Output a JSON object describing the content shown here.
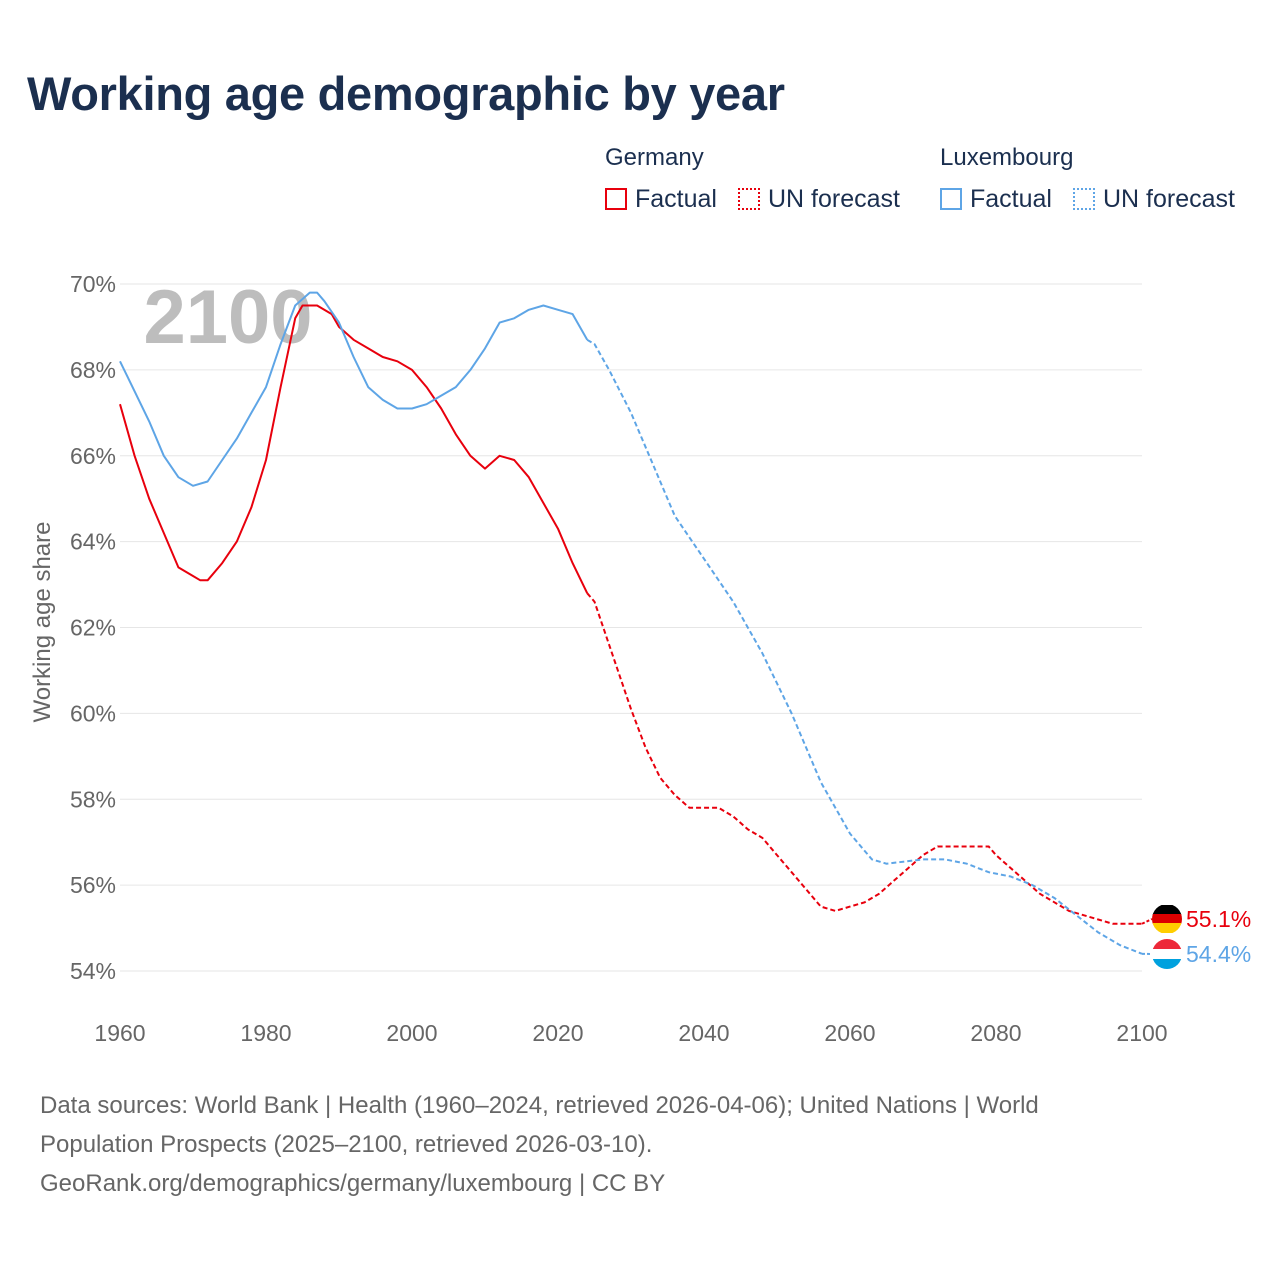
{
  "title": "Working age demographic by year",
  "legend": {
    "germany_label": "Germany",
    "luxembourg_label": "Luxembourg",
    "factual_label": "Factual",
    "forecast_label": "UN forecast"
  },
  "colors": {
    "germany": "#e8000d",
    "luxembourg": "#5ea5e6",
    "grid": "#e6e6e6",
    "text": "#666666",
    "title": "#1b2f4f"
  },
  "chart_data": {
    "type": "line",
    "title": "Working age demographic by year",
    "xlabel": "",
    "ylabel": "Working age share",
    "year_watermark": "2100",
    "xlim": [
      1960,
      2100
    ],
    "ylim": [
      54,
      70
    ],
    "x_ticks": [
      1960,
      1980,
      2000,
      2020,
      2040,
      2060,
      2080,
      2100
    ],
    "y_ticks": [
      54,
      56,
      58,
      60,
      62,
      64,
      66,
      68,
      70
    ],
    "y_tick_labels": [
      "54%",
      "56%",
      "58%",
      "60%",
      "62%",
      "64%",
      "66%",
      "68%",
      "70%"
    ],
    "factual_end_year": 2024,
    "series": [
      {
        "name": "Germany",
        "end_label": "55.1%",
        "points": [
          [
            1960,
            67.2
          ],
          [
            1962,
            66.0
          ],
          [
            1964,
            65.0
          ],
          [
            1966,
            64.2
          ],
          [
            1968,
            63.4
          ],
          [
            1970,
            63.2
          ],
          [
            1971,
            63.1
          ],
          [
            1972,
            63.1
          ],
          [
            1974,
            63.5
          ],
          [
            1976,
            64.0
          ],
          [
            1978,
            64.8
          ],
          [
            1980,
            65.9
          ],
          [
            1982,
            67.6
          ],
          [
            1984,
            69.2
          ],
          [
            1985,
            69.5
          ],
          [
            1987,
            69.5
          ],
          [
            1989,
            69.3
          ],
          [
            1990,
            69.0
          ],
          [
            1992,
            68.7
          ],
          [
            1994,
            68.5
          ],
          [
            1996,
            68.3
          ],
          [
            1998,
            68.2
          ],
          [
            2000,
            68.0
          ],
          [
            2002,
            67.6
          ],
          [
            2004,
            67.1
          ],
          [
            2006,
            66.5
          ],
          [
            2008,
            66.0
          ],
          [
            2010,
            65.7
          ],
          [
            2012,
            66.0
          ],
          [
            2014,
            65.9
          ],
          [
            2016,
            65.5
          ],
          [
            2018,
            64.9
          ],
          [
            2020,
            64.3
          ],
          [
            2022,
            63.5
          ],
          [
            2024,
            62.8
          ],
          [
            2025,
            62.6
          ],
          [
            2027,
            61.6
          ],
          [
            2030,
            60.1
          ],
          [
            2032,
            59.2
          ],
          [
            2034,
            58.5
          ],
          [
            2036,
            58.1
          ],
          [
            2038,
            57.8
          ],
          [
            2042,
            57.8
          ],
          [
            2044,
            57.6
          ],
          [
            2046,
            57.3
          ],
          [
            2048,
            57.1
          ],
          [
            2050,
            56.7
          ],
          [
            2052,
            56.3
          ],
          [
            2054,
            55.9
          ],
          [
            2056,
            55.5
          ],
          [
            2058,
            55.4
          ],
          [
            2060,
            55.5
          ],
          [
            2062,
            55.6
          ],
          [
            2064,
            55.8
          ],
          [
            2066,
            56.1
          ],
          [
            2068,
            56.4
          ],
          [
            2070,
            56.7
          ],
          [
            2072,
            56.9
          ],
          [
            2079,
            56.9
          ],
          [
            2080,
            56.7
          ],
          [
            2082,
            56.4
          ],
          [
            2084,
            56.1
          ],
          [
            2086,
            55.8
          ],
          [
            2088,
            55.6
          ],
          [
            2090,
            55.4
          ],
          [
            2092,
            55.3
          ],
          [
            2094,
            55.2
          ],
          [
            2096,
            55.1
          ],
          [
            2098,
            55.1
          ],
          [
            2100,
            55.1
          ]
        ]
      },
      {
        "name": "Luxembourg",
        "end_label": "54.4%",
        "points": [
          [
            1960,
            68.2
          ],
          [
            1962,
            67.5
          ],
          [
            1964,
            66.8
          ],
          [
            1966,
            66.0
          ],
          [
            1968,
            65.5
          ],
          [
            1970,
            65.3
          ],
          [
            1972,
            65.4
          ],
          [
            1974,
            65.9
          ],
          [
            1976,
            66.4
          ],
          [
            1978,
            67.0
          ],
          [
            1980,
            67.6
          ],
          [
            1982,
            68.6
          ],
          [
            1984,
            69.5
          ],
          [
            1986,
            69.8
          ],
          [
            1987,
            69.8
          ],
          [
            1988,
            69.6
          ],
          [
            1990,
            69.1
          ],
          [
            1992,
            68.3
          ],
          [
            1994,
            67.6
          ],
          [
            1996,
            67.3
          ],
          [
            1998,
            67.1
          ],
          [
            2000,
            67.1
          ],
          [
            2002,
            67.2
          ],
          [
            2004,
            67.4
          ],
          [
            2006,
            67.6
          ],
          [
            2008,
            68.0
          ],
          [
            2010,
            68.5
          ],
          [
            2012,
            69.1
          ],
          [
            2014,
            69.2
          ],
          [
            2016,
            69.4
          ],
          [
            2018,
            69.5
          ],
          [
            2020,
            69.4
          ],
          [
            2022,
            69.3
          ],
          [
            2024,
            68.7
          ],
          [
            2025,
            68.6
          ],
          [
            2027,
            68.0
          ],
          [
            2030,
            67.0
          ],
          [
            2033,
            65.8
          ],
          [
            2036,
            64.6
          ],
          [
            2040,
            63.6
          ],
          [
            2044,
            62.6
          ],
          [
            2048,
            61.4
          ],
          [
            2052,
            60.0
          ],
          [
            2056,
            58.4
          ],
          [
            2060,
            57.2
          ],
          [
            2063,
            56.6
          ],
          [
            2065,
            56.5
          ],
          [
            2070,
            56.6
          ],
          [
            2073,
            56.6
          ],
          [
            2076,
            56.5
          ],
          [
            2079,
            56.3
          ],
          [
            2082,
            56.2
          ],
          [
            2085,
            56.0
          ],
          [
            2088,
            55.7
          ],
          [
            2091,
            55.3
          ],
          [
            2094,
            54.9
          ],
          [
            2097,
            54.6
          ],
          [
            2100,
            54.4
          ]
        ]
      }
    ]
  },
  "footer": {
    "line1": "Data sources: World Bank | Health (1960–2024, retrieved 2026-04-06); United Nations | World",
    "line2": "Population Prospects (2025–2100, retrieved 2026-03-10).",
    "line3": "GeoRank.org/demographics/germany/luxembourg | CC BY"
  }
}
